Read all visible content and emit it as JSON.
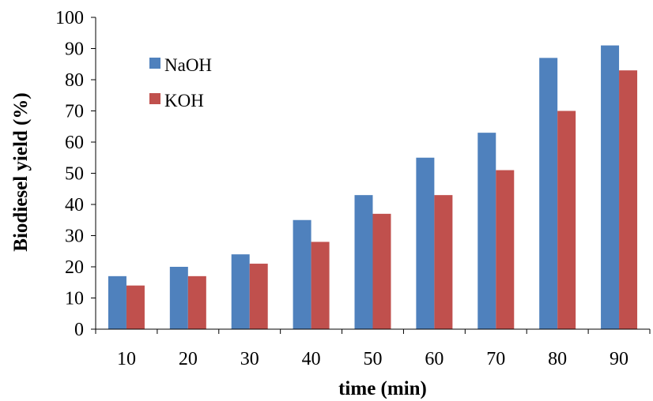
{
  "chart_data": {
    "type": "bar",
    "title": "",
    "xlabel": "time (min)",
    "ylabel": "Biodiesel yield (%)",
    "categories": [
      "10",
      "20",
      "30",
      "40",
      "50",
      "60",
      "70",
      "80",
      "90"
    ],
    "series": [
      {
        "name": "NaOH",
        "color": "#4F81BD",
        "values": [
          17,
          20,
          24,
          35,
          43,
          55,
          63,
          87,
          91
        ]
      },
      {
        "name": "KOH",
        "color": "#C0504D",
        "values": [
          14,
          17,
          21,
          28,
          37,
          43,
          51,
          70,
          83
        ]
      }
    ],
    "ylim": [
      0,
      100
    ],
    "yticks": [
      "0",
      "10",
      "20",
      "30",
      "40",
      "50",
      "60",
      "70",
      "80",
      "90",
      "100"
    ],
    "grid": false,
    "legend_position": "top-left"
  }
}
